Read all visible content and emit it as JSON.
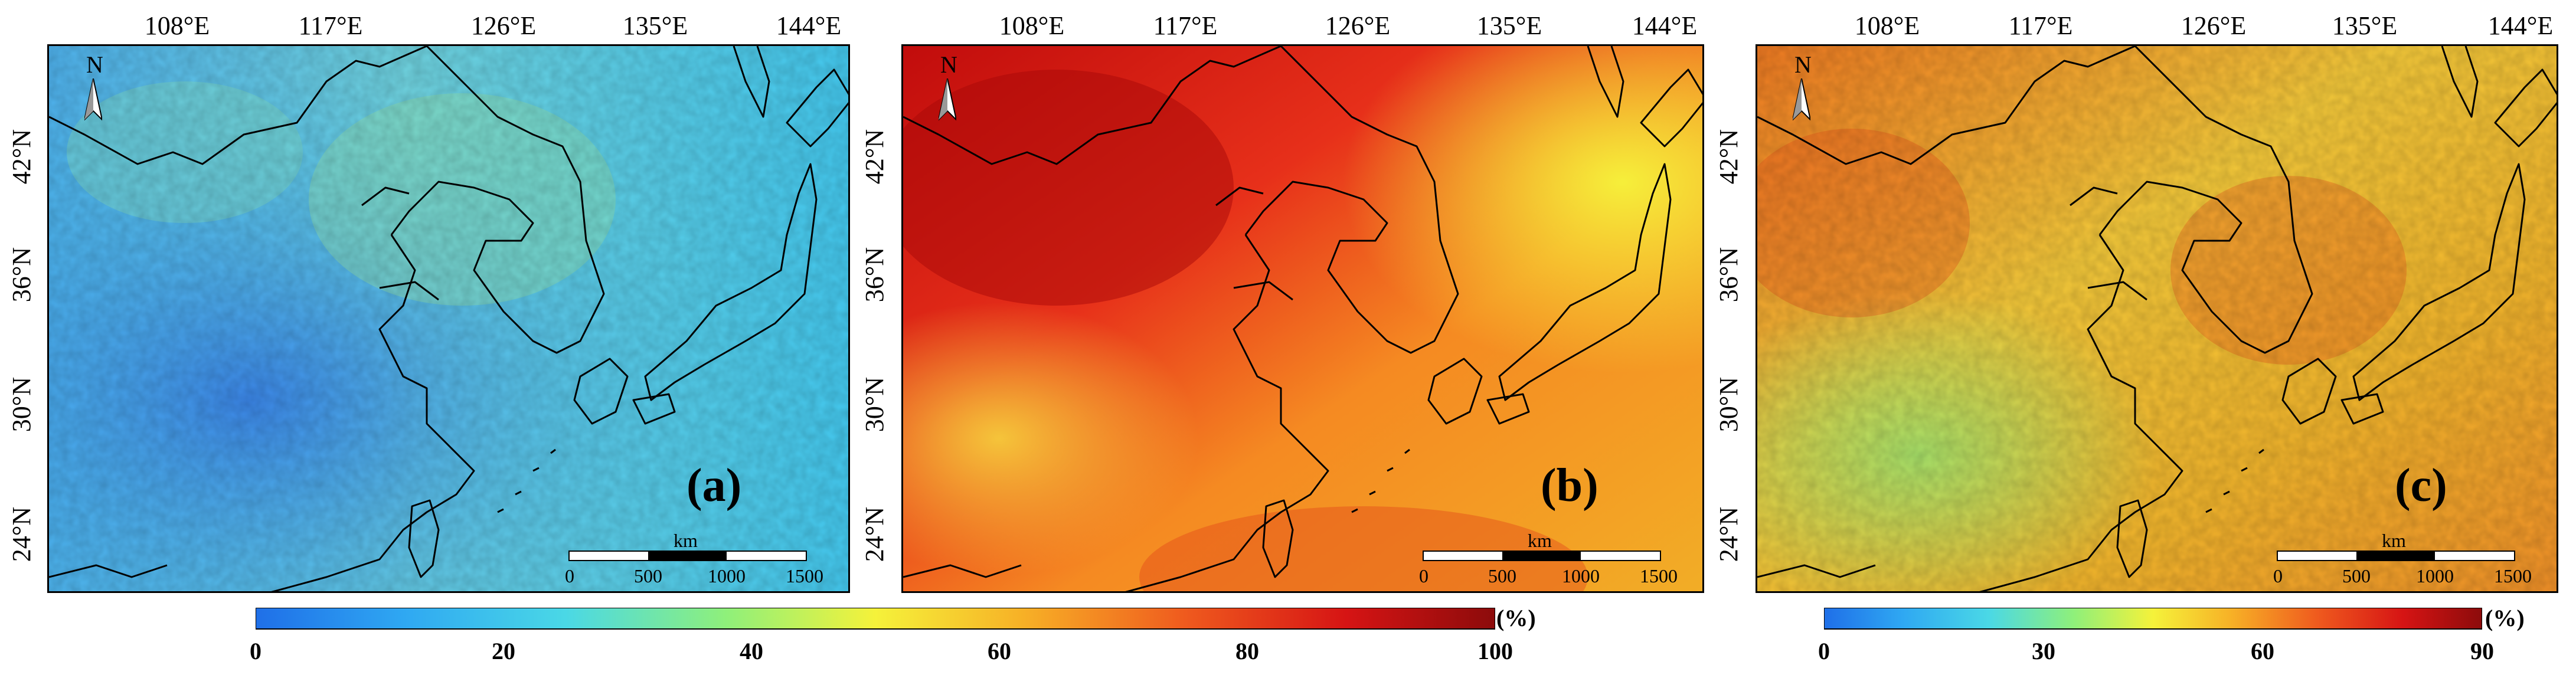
{
  "longitude_labels": [
    "108°E",
    "117°E",
    "126°E",
    "135°E",
    "144°E"
  ],
  "latitude_labels": [
    "42°N",
    "36°N",
    "30°N",
    "24°N"
  ],
  "north_label": "N",
  "scale_bar": {
    "unit": "km",
    "ticks": [
      "0",
      "500",
      "1000",
      "1500"
    ]
  },
  "panels": [
    {
      "tag": "(a)",
      "colorscale": "blue-cyan",
      "description_level": 0.2
    },
    {
      "tag": "(b)",
      "colorscale": "red-yellow",
      "description_level": 0.85
    },
    {
      "tag": "(c)",
      "colorscale": "orange-yellow",
      "description_level": 0.55
    }
  ],
  "colorbars": [
    {
      "unit": "(%)",
      "ticks": [
        "0",
        "20",
        "40",
        "60",
        "80",
        "100"
      ],
      "min": 0,
      "max": 100
    },
    {
      "unit": "(%)",
      "ticks": [
        "0",
        "30",
        "60",
        "90"
      ],
      "min": 0,
      "max": 90
    }
  ],
  "colors": {
    "ramp": [
      "#1f6fe8",
      "#2fa8f2",
      "#4ad8e6",
      "#8ff07a",
      "#f5f23a",
      "#f7b026",
      "#ef5a1e",
      "#d61414",
      "#8c0b0b"
    ],
    "coastline": "#000000"
  }
}
